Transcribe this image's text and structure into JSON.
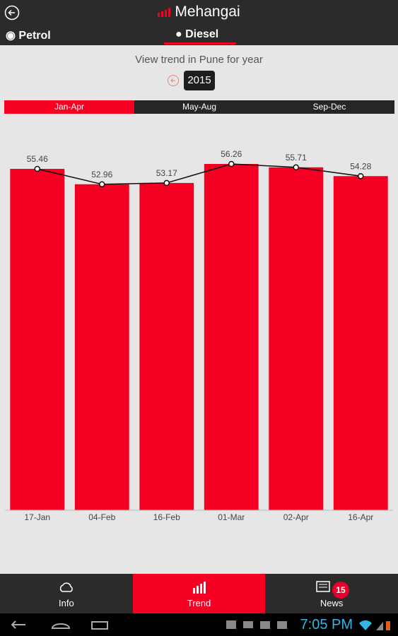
{
  "header": {
    "title": "Mehangai"
  },
  "fuel_tabs": [
    "Petrol",
    "Diesel"
  ],
  "prompt": "View trend in Pune for year",
  "year": "2015",
  "periods": [
    "Jan-Apr",
    "May-Aug",
    "Sep-Dec"
  ],
  "chart_data": {
    "type": "bar",
    "categories": [
      "17-Jan",
      "04-Feb",
      "16-Feb",
      "01-Mar",
      "02-Apr",
      "16-Apr"
    ],
    "values": [
      55.46,
      52.96,
      53.17,
      56.26,
      55.71,
      54.28
    ],
    "color": "#f50022",
    "trend_line": true,
    "line_color": "#111111",
    "ylim": [
      0,
      62
    ]
  },
  "nav": [
    "Info",
    "Trend",
    "News"
  ],
  "news_badge": "15",
  "status": {
    "time": "7:05 PM"
  }
}
